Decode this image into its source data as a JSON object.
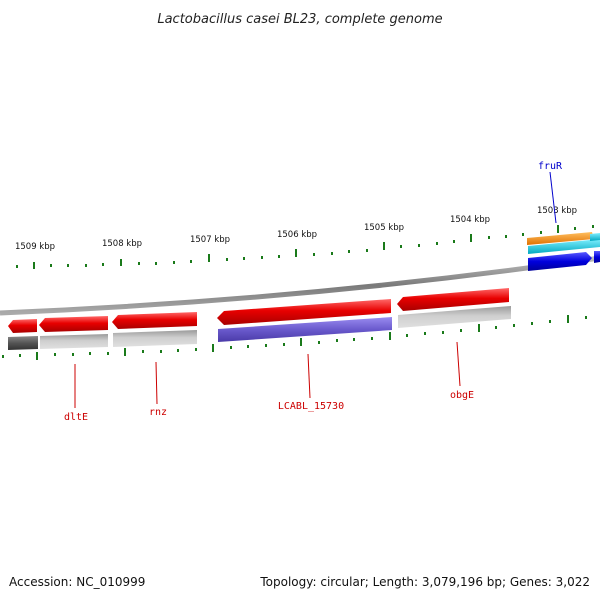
{
  "title": "Lactobacillus casei BL23, complete genome",
  "footer": {
    "accession": "Accession: NC_010999",
    "summary": "Topology: circular; Length: 3,079,196 bp; Genes: 3,022"
  },
  "scale_ticks": [
    "1509 kbp",
    "1508 kbp",
    "1507 kbp",
    "1506 kbp",
    "1505 kbp",
    "1504 kbp",
    "1503 kbp"
  ],
  "gene_labels": [
    "dltE",
    "rnz",
    "LCABL_15730",
    "obgE",
    "fruR"
  ],
  "colors": {
    "backbone": "#8a8a8a",
    "gene_red": "#e60000",
    "gene_purple": "#6a5acd",
    "gene_gray": "#b4b4b4",
    "gene_dark_gray": "#555555",
    "gene_blue": "#0000dd",
    "gene_orange": "#f08000",
    "gene_cyan": "#00c8d8",
    "tick_green": "#1a7a1a",
    "label_red": "#cc0000",
    "label_blue": "#0000cc"
  }
}
